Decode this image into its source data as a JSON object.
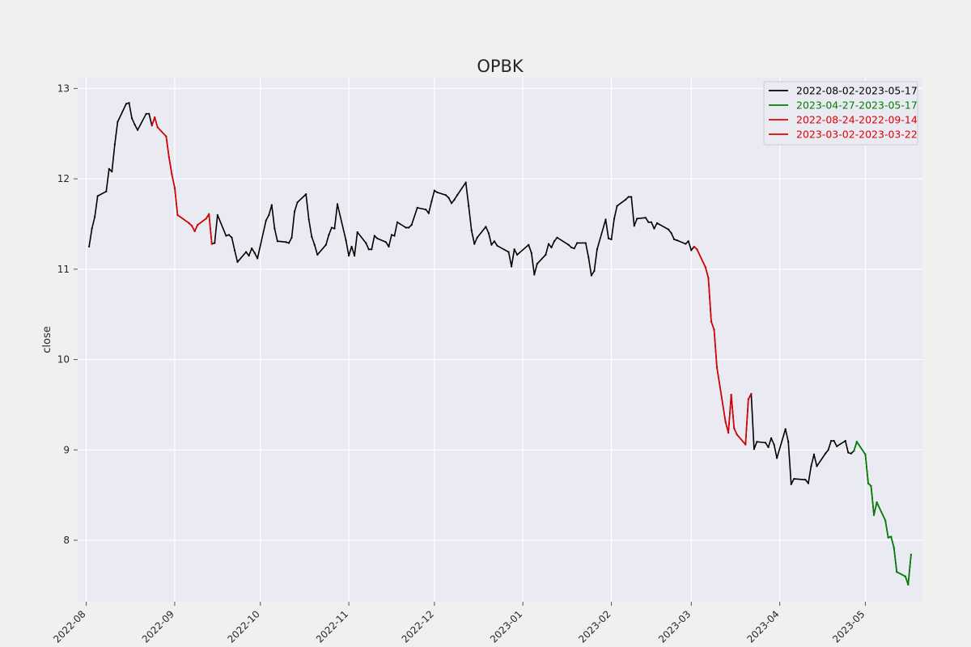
{
  "chart_data": {
    "type": "line",
    "title": "OPBK",
    "xlabel": "",
    "ylabel": "close",
    "x_range": [
      "2022-07-29",
      "2023-05-21"
    ],
    "ylim": [
      7.32,
      13.12
    ],
    "x_ticks": [
      "2022-08-01",
      "2022-09-01",
      "2022-10-01",
      "2022-11-01",
      "2022-12-01",
      "2023-01-01",
      "2023-02-01",
      "2023-03-01",
      "2023-04-01",
      "2023-05-01"
    ],
    "x_tick_labels": [
      "2022-08",
      "2022-09",
      "2022-10",
      "2022-11",
      "2022-12",
      "2023-01",
      "2023-02",
      "2023-03",
      "2023-04",
      "2023-05"
    ],
    "y_ticks": [
      8,
      9,
      10,
      11,
      12,
      13
    ],
    "y_tick_labels": [
      "8",
      "9",
      "10",
      "11",
      "12",
      "13"
    ],
    "grid": true,
    "legend_position": "top-right",
    "colors": {
      "background": "#eaeaf2",
      "grid": "#ffffff",
      "figure": "#f0f0f0"
    },
    "series": [
      {
        "name": "2022-08-02-2023-05-17",
        "color": "#000000",
        "points": [
          [
            "2022-08-02",
            11.25
          ],
          [
            "2022-08-03",
            11.45
          ],
          [
            "2022-08-04",
            11.58
          ],
          [
            "2022-08-05",
            11.81
          ],
          [
            "2022-08-08",
            11.86
          ],
          [
            "2022-08-09",
            12.11
          ],
          [
            "2022-08-10",
            12.08
          ],
          [
            "2022-08-11",
            12.38
          ],
          [
            "2022-08-12",
            12.63
          ],
          [
            "2022-08-15",
            12.83
          ],
          [
            "2022-08-16",
            12.84
          ],
          [
            "2022-08-17",
            12.67
          ],
          [
            "2022-08-18",
            12.6
          ],
          [
            "2022-08-19",
            12.54
          ],
          [
            "2022-08-22",
            12.72
          ],
          [
            "2022-08-23",
            12.72
          ],
          [
            "2022-08-24",
            12.59
          ],
          [
            "2022-08-25",
            12.68
          ],
          [
            "2022-08-26",
            12.57
          ],
          [
            "2022-08-29",
            12.47
          ],
          [
            "2022-08-30",
            12.24
          ],
          [
            "2022-08-31",
            12.05
          ],
          [
            "2022-09-01",
            11.9
          ],
          [
            "2022-09-02",
            11.6
          ],
          [
            "2022-09-06",
            11.51
          ],
          [
            "2022-09-07",
            11.48
          ],
          [
            "2022-09-08",
            11.42
          ],
          [
            "2022-09-09",
            11.49
          ],
          [
            "2022-09-12",
            11.56
          ],
          [
            "2022-09-13",
            11.61
          ],
          [
            "2022-09-14",
            11.28
          ],
          [
            "2022-09-15",
            11.29
          ],
          [
            "2022-09-16",
            11.6
          ],
          [
            "2022-09-19",
            11.37
          ],
          [
            "2022-09-20",
            11.38
          ],
          [
            "2022-09-21",
            11.35
          ],
          [
            "2022-09-22",
            11.21
          ],
          [
            "2022-09-23",
            11.08
          ],
          [
            "2022-09-26",
            11.19
          ],
          [
            "2022-09-27",
            11.15
          ],
          [
            "2022-09-28",
            11.23
          ],
          [
            "2022-09-29",
            11.18
          ],
          [
            "2022-09-30",
            11.12
          ],
          [
            "2022-10-03",
            11.54
          ],
          [
            "2022-10-04",
            11.6
          ],
          [
            "2022-10-05",
            11.71
          ],
          [
            "2022-10-06",
            11.45
          ],
          [
            "2022-10-07",
            11.31
          ],
          [
            "2022-10-10",
            11.3
          ],
          [
            "2022-10-11",
            11.29
          ],
          [
            "2022-10-12",
            11.35
          ],
          [
            "2022-10-13",
            11.64
          ],
          [
            "2022-10-14",
            11.74
          ],
          [
            "2022-10-17",
            11.83
          ],
          [
            "2022-10-18",
            11.55
          ],
          [
            "2022-10-19",
            11.36
          ],
          [
            "2022-10-20",
            11.27
          ],
          [
            "2022-10-21",
            11.16
          ],
          [
            "2022-10-24",
            11.27
          ],
          [
            "2022-10-25",
            11.38
          ],
          [
            "2022-10-26",
            11.46
          ],
          [
            "2022-10-27",
            11.45
          ],
          [
            "2022-10-28",
            11.72
          ],
          [
            "2022-10-31",
            11.32
          ],
          [
            "2022-11-01",
            11.15
          ],
          [
            "2022-11-02",
            11.25
          ],
          [
            "2022-11-03",
            11.15
          ],
          [
            "2022-11-04",
            11.41
          ],
          [
            "2022-11-07",
            11.29
          ],
          [
            "2022-11-08",
            11.22
          ],
          [
            "2022-11-09",
            11.22
          ],
          [
            "2022-11-10",
            11.37
          ],
          [
            "2022-11-11",
            11.34
          ],
          [
            "2022-11-14",
            11.3
          ],
          [
            "2022-11-15",
            11.25
          ],
          [
            "2022-11-16",
            11.38
          ],
          [
            "2022-11-17",
            11.37
          ],
          [
            "2022-11-18",
            11.52
          ],
          [
            "2022-11-21",
            11.46
          ],
          [
            "2022-11-22",
            11.46
          ],
          [
            "2022-11-23",
            11.49
          ],
          [
            "2022-11-25",
            11.68
          ],
          [
            "2022-11-28",
            11.66
          ],
          [
            "2022-11-29",
            11.62
          ],
          [
            "2022-11-30",
            11.75
          ],
          [
            "2022-12-01",
            11.87
          ],
          [
            "2022-12-02",
            11.85
          ],
          [
            "2022-12-05",
            11.82
          ],
          [
            "2022-12-06",
            11.79
          ],
          [
            "2022-12-07",
            11.73
          ],
          [
            "2022-12-08",
            11.77
          ],
          [
            "2022-12-09",
            11.82
          ],
          [
            "2022-12-12",
            11.96
          ],
          [
            "2022-12-13",
            11.7
          ],
          [
            "2022-12-14",
            11.43
          ],
          [
            "2022-12-15",
            11.28
          ],
          [
            "2022-12-16",
            11.35
          ],
          [
            "2022-12-19",
            11.47
          ],
          [
            "2022-12-20",
            11.4
          ],
          [
            "2022-12-21",
            11.27
          ],
          [
            "2022-12-22",
            11.31
          ],
          [
            "2022-12-23",
            11.26
          ],
          [
            "2022-12-27",
            11.19
          ],
          [
            "2022-12-28",
            11.03
          ],
          [
            "2022-12-29",
            11.22
          ],
          [
            "2022-12-30",
            11.16
          ],
          [
            "2023-01-03",
            11.27
          ],
          [
            "2023-01-04",
            11.18
          ],
          [
            "2023-01-05",
            10.94
          ],
          [
            "2023-01-06",
            11.06
          ],
          [
            "2023-01-09",
            11.16
          ],
          [
            "2023-01-10",
            11.28
          ],
          [
            "2023-01-11",
            11.24
          ],
          [
            "2023-01-12",
            11.31
          ],
          [
            "2023-01-13",
            11.35
          ],
          [
            "2023-01-17",
            11.27
          ],
          [
            "2023-01-18",
            11.24
          ],
          [
            "2023-01-19",
            11.23
          ],
          [
            "2023-01-20",
            11.29
          ],
          [
            "2023-01-23",
            11.29
          ],
          [
            "2023-01-24",
            11.13
          ],
          [
            "2023-01-25",
            10.93
          ],
          [
            "2023-01-26",
            10.98
          ],
          [
            "2023-01-27",
            11.22
          ],
          [
            "2023-01-30",
            11.55
          ],
          [
            "2023-01-31",
            11.34
          ],
          [
            "2023-02-01",
            11.33
          ],
          [
            "2023-02-02",
            11.56
          ],
          [
            "2023-02-03",
            11.7
          ],
          [
            "2023-02-06",
            11.77
          ],
          [
            "2023-02-07",
            11.8
          ],
          [
            "2023-02-08",
            11.8
          ],
          [
            "2023-02-09",
            11.48
          ],
          [
            "2023-02-10",
            11.56
          ],
          [
            "2023-02-13",
            11.57
          ],
          [
            "2023-02-14",
            11.52
          ],
          [
            "2023-02-15",
            11.52
          ],
          [
            "2023-02-16",
            11.45
          ],
          [
            "2023-02-17",
            11.51
          ],
          [
            "2023-02-21",
            11.44
          ],
          [
            "2023-02-22",
            11.4
          ],
          [
            "2023-02-23",
            11.33
          ],
          [
            "2023-02-24",
            11.32
          ],
          [
            "2023-02-27",
            11.28
          ],
          [
            "2023-02-28",
            11.31
          ],
          [
            "2023-03-01",
            11.21
          ],
          [
            "2023-03-02",
            11.25
          ],
          [
            "2023-03-03",
            11.22
          ],
          [
            "2023-03-06",
            11.02
          ],
          [
            "2023-03-07",
            10.9
          ],
          [
            "2023-03-08",
            10.42
          ],
          [
            "2023-03-09",
            10.33
          ],
          [
            "2023-03-10",
            9.91
          ],
          [
            "2023-03-13",
            9.31
          ],
          [
            "2023-03-14",
            9.19
          ],
          [
            "2023-03-15",
            9.61
          ],
          [
            "2023-03-16",
            9.24
          ],
          [
            "2023-03-17",
            9.17
          ],
          [
            "2023-03-20",
            9.06
          ],
          [
            "2023-03-21",
            9.56
          ],
          [
            "2023-03-22",
            9.62
          ],
          [
            "2023-03-23",
            9.01
          ],
          [
            "2023-03-24",
            9.09
          ],
          [
            "2023-03-27",
            9.08
          ],
          [
            "2023-03-28",
            9.03
          ],
          [
            "2023-03-29",
            9.13
          ],
          [
            "2023-03-30",
            9.06
          ],
          [
            "2023-03-31",
            8.91
          ],
          [
            "2023-04-03",
            9.23
          ],
          [
            "2023-04-04",
            9.09
          ],
          [
            "2023-04-05",
            8.62
          ],
          [
            "2023-04-06",
            8.68
          ],
          [
            "2023-04-10",
            8.67
          ],
          [
            "2023-04-11",
            8.63
          ],
          [
            "2023-04-12",
            8.82
          ],
          [
            "2023-04-13",
            8.95
          ],
          [
            "2023-04-14",
            8.82
          ],
          [
            "2023-04-17",
            8.96
          ],
          [
            "2023-04-18",
            9.0
          ],
          [
            "2023-04-19",
            9.1
          ],
          [
            "2023-04-20",
            9.1
          ],
          [
            "2023-04-21",
            9.04
          ],
          [
            "2023-04-24",
            9.1
          ],
          [
            "2023-04-25",
            8.97
          ],
          [
            "2023-04-26",
            8.96
          ],
          [
            "2023-04-27",
            8.99
          ],
          [
            "2023-04-28",
            9.09
          ],
          [
            "2023-05-01",
            8.95
          ],
          [
            "2023-05-02",
            8.63
          ],
          [
            "2023-05-03",
            8.6
          ],
          [
            "2023-05-04",
            8.28
          ],
          [
            "2023-05-05",
            8.42
          ],
          [
            "2023-05-08",
            8.22
          ],
          [
            "2023-05-09",
            8.03
          ],
          [
            "2023-05-10",
            8.04
          ],
          [
            "2023-05-11",
            7.92
          ],
          [
            "2023-05-12",
            7.65
          ],
          [
            "2023-05-15",
            7.6
          ],
          [
            "2023-05-16",
            7.51
          ],
          [
            "2023-05-17",
            7.84
          ]
        ]
      },
      {
        "name": "2023-04-27-2023-05-17",
        "color": "#008000",
        "points": [
          [
            "2023-04-27",
            8.99
          ],
          [
            "2023-04-28",
            9.09
          ],
          [
            "2023-05-01",
            8.95
          ],
          [
            "2023-05-02",
            8.63
          ],
          [
            "2023-05-03",
            8.6
          ],
          [
            "2023-05-04",
            8.28
          ],
          [
            "2023-05-05",
            8.42
          ],
          [
            "2023-05-08",
            8.22
          ],
          [
            "2023-05-09",
            8.03
          ],
          [
            "2023-05-10",
            8.04
          ],
          [
            "2023-05-11",
            7.92
          ],
          [
            "2023-05-12",
            7.65
          ],
          [
            "2023-05-15",
            7.6
          ],
          [
            "2023-05-16",
            7.51
          ],
          [
            "2023-05-17",
            7.84
          ]
        ]
      },
      {
        "name": "2022-08-24-2022-09-14",
        "color": "#e00000",
        "points": [
          [
            "2022-08-24",
            12.59
          ],
          [
            "2022-08-25",
            12.68
          ],
          [
            "2022-08-26",
            12.57
          ],
          [
            "2022-08-29",
            12.47
          ],
          [
            "2022-08-30",
            12.24
          ],
          [
            "2022-08-31",
            12.05
          ],
          [
            "2022-09-01",
            11.9
          ],
          [
            "2022-09-02",
            11.6
          ],
          [
            "2022-09-06",
            11.51
          ],
          [
            "2022-09-07",
            11.48
          ],
          [
            "2022-09-08",
            11.42
          ],
          [
            "2022-09-09",
            11.49
          ],
          [
            "2022-09-12",
            11.56
          ],
          [
            "2022-09-13",
            11.61
          ],
          [
            "2022-09-14",
            11.28
          ]
        ]
      },
      {
        "name": "2023-03-02-2023-03-22",
        "color": "#e00000",
        "points": [
          [
            "2023-03-02",
            11.25
          ],
          [
            "2023-03-03",
            11.22
          ],
          [
            "2023-03-06",
            11.02
          ],
          [
            "2023-03-07",
            10.9
          ],
          [
            "2023-03-08",
            10.42
          ],
          [
            "2023-03-09",
            10.33
          ],
          [
            "2023-03-10",
            9.91
          ],
          [
            "2023-03-13",
            9.31
          ],
          [
            "2023-03-14",
            9.19
          ],
          [
            "2023-03-15",
            9.61
          ],
          [
            "2023-03-16",
            9.24
          ],
          [
            "2023-03-17",
            9.17
          ],
          [
            "2023-03-20",
            9.06
          ],
          [
            "2023-03-21",
            9.56
          ],
          [
            "2023-03-22",
            9.62
          ]
        ]
      }
    ]
  }
}
